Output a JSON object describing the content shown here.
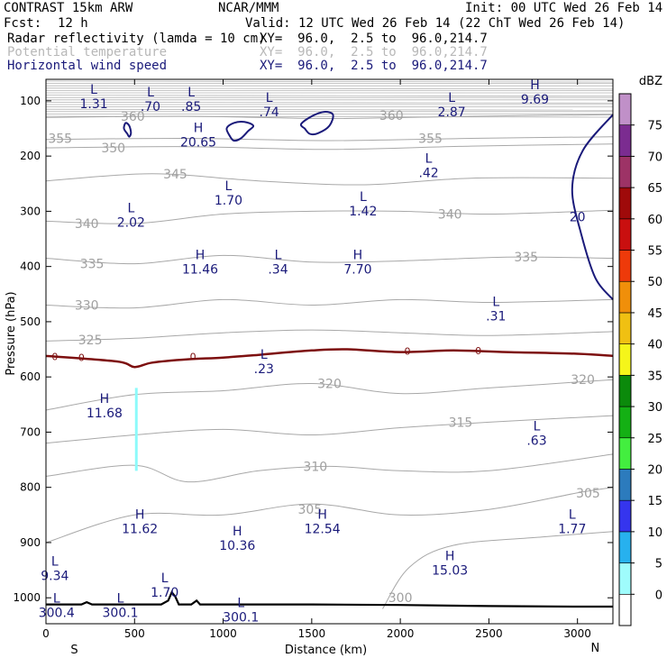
{
  "header": {
    "model": "CONTRAST 15km ARW",
    "org": "NCAR/MMM",
    "init": "Init: 00 UTC Wed 26 Feb 14",
    "fcst_label": "Fcst:",
    "fcst_value": "12 h",
    "valid": "Valid: 12 UTC Wed 26 Feb 14 (22 ChT Wed 26 Feb 14)",
    "fields": [
      {
        "name": "Radar reflectivity (lamda = 10 cm)",
        "xy": "XY=  96.0,  2.5 to  96.0,214.7",
        "color": "#000000"
      },
      {
        "name": "Potential temperature",
        "xy": "XY=  96.0,  2.5 to  96.0,214.7",
        "color": "#b8b8b8"
      },
      {
        "name": "Horizontal wind speed",
        "xy": "XY=  96.0,  2.5 to  96.0,214.7",
        "color": "#1a1a7a"
      }
    ]
  },
  "chart_data": {
    "type": "cross-section",
    "xlabel": "Distance (km)",
    "ylabel": "Pressure (hPa)",
    "xlim": [
      0,
      3200
    ],
    "ylim": [
      1050,
      50
    ],
    "x_ticks": [
      0,
      500,
      1000,
      1500,
      2000,
      2500,
      3000
    ],
    "y_ticks": [
      100,
      200,
      300,
      400,
      500,
      600,
      700,
      800,
      900,
      1000
    ],
    "x_end_labels": {
      "left": "S",
      "right": "N"
    },
    "theta_contours": [
      {
        "value": 360,
        "points": [
          [
            0,
            130
          ],
          [
            800,
            128
          ],
          [
            1600,
            132
          ],
          [
            2400,
            128
          ],
          [
            3200,
            125
          ]
        ]
      },
      {
        "value": 355,
        "points": [
          [
            0,
            170
          ],
          [
            800,
            168
          ],
          [
            1600,
            172
          ],
          [
            2400,
            168
          ],
          [
            3200,
            165
          ]
        ]
      },
      {
        "value": 350,
        "points": [
          [
            0,
            185
          ],
          [
            800,
            183
          ],
          [
            1600,
            188
          ],
          [
            2400,
            182
          ],
          [
            3200,
            178
          ]
        ]
      },
      {
        "value": 345,
        "points": [
          [
            0,
            245
          ],
          [
            600,
            232
          ],
          [
            1200,
            245
          ],
          [
            1800,
            252
          ],
          [
            2400,
            240
          ],
          [
            3200,
            240
          ]
        ]
      },
      {
        "value": 340,
        "points": [
          [
            0,
            318
          ],
          [
            500,
            322
          ],
          [
            1000,
            305
          ],
          [
            1500,
            300
          ],
          [
            2000,
            300
          ],
          [
            2500,
            305
          ],
          [
            3200,
            298
          ]
        ]
      },
      {
        "value": 335,
        "points": [
          [
            0,
            385
          ],
          [
            500,
            395
          ],
          [
            1000,
            380
          ],
          [
            1500,
            392
          ],
          [
            2000,
            390
          ],
          [
            2600,
            383
          ],
          [
            3200,
            385
          ]
        ]
      },
      {
        "value": 330,
        "points": [
          [
            0,
            470
          ],
          [
            500,
            475
          ],
          [
            1000,
            460
          ],
          [
            1500,
            470
          ],
          [
            2000,
            460
          ],
          [
            2500,
            465
          ],
          [
            3200,
            460
          ]
        ]
      },
      {
        "value": 325,
        "points": [
          [
            0,
            535
          ],
          [
            500,
            530
          ],
          [
            1000,
            520
          ],
          [
            1500,
            515
          ],
          [
            2000,
            520
          ],
          [
            2500,
            525
          ],
          [
            3200,
            518
          ]
        ]
      },
      {
        "value": 320,
        "points": [
          [
            0,
            660
          ],
          [
            500,
            632
          ],
          [
            1000,
            625
          ],
          [
            1500,
            612
          ],
          [
            2000,
            630
          ],
          [
            2500,
            620
          ],
          [
            3200,
            605
          ]
        ]
      },
      {
        "value": 315,
        "points": [
          [
            0,
            720
          ],
          [
            500,
            705
          ],
          [
            1000,
            695
          ],
          [
            1500,
            705
          ],
          [
            2000,
            692
          ],
          [
            2500,
            682
          ],
          [
            3200,
            670
          ]
        ]
      },
      {
        "value": 310,
        "points": [
          [
            0,
            780
          ],
          [
            500,
            760
          ],
          [
            800,
            790
          ],
          [
            1200,
            770
          ],
          [
            1600,
            762
          ],
          [
            2000,
            770
          ],
          [
            2500,
            770
          ],
          [
            3200,
            740
          ]
        ]
      },
      {
        "value": 305,
        "points": [
          [
            0,
            900
          ],
          [
            500,
            850
          ],
          [
            1000,
            850
          ],
          [
            1500,
            830
          ],
          [
            2000,
            850
          ],
          [
            2500,
            840
          ],
          [
            3000,
            810
          ],
          [
            3200,
            800
          ]
        ]
      },
      {
        "value": 300,
        "points": [
          [
            1900,
            1020
          ],
          [
            2050,
            945
          ],
          [
            2300,
            905
          ],
          [
            2800,
            890
          ],
          [
            3200,
            880
          ]
        ]
      }
    ],
    "theta_labels": [
      {
        "text": "360",
        "x": 490,
        "p": 128
      },
      {
        "text": "355",
        "x": 80,
        "p": 168
      },
      {
        "text": "350",
        "x": 380,
        "p": 185
      },
      {
        "text": "345",
        "x": 730,
        "p": 232
      },
      {
        "text": "340",
        "x": 230,
        "p": 322
      },
      {
        "text": "335",
        "x": 260,
        "p": 395
      },
      {
        "text": "330",
        "x": 230,
        "p": 470
      },
      {
        "text": "325",
        "x": 250,
        "p": 533
      },
      {
        "text": "320",
        "x": 1600,
        "p": 612
      },
      {
        "text": "315",
        "x": 2340,
        "p": 682
      },
      {
        "text": "310",
        "x": 1520,
        "p": 762
      },
      {
        "text": "305",
        "x": 1490,
        "p": 840
      },
      {
        "text": "300",
        "x": 2000,
        "p": 1000
      },
      {
        "text": "360",
        "x": 1950,
        "p": 126
      },
      {
        "text": "355",
        "x": 2170,
        "p": 168
      },
      {
        "text": "340",
        "x": 2280,
        "p": 305
      },
      {
        "text": "335",
        "x": 2710,
        "p": 383
      },
      {
        "text": "320",
        "x": 3030,
        "p": 605
      },
      {
        "text": "305",
        "x": 3060,
        "p": 810
      }
    ],
    "zero_contour": [
      [
        0,
        562
      ],
      [
        400,
        572
      ],
      [
        500,
        582
      ],
      [
        600,
        574
      ],
      [
        800,
        568
      ],
      [
        1000,
        565
      ],
      [
        1200,
        560
      ],
      [
        1500,
        552
      ],
      [
        1700,
        550
      ],
      [
        2000,
        555
      ],
      [
        2300,
        552
      ],
      [
        2600,
        555
      ],
      [
        3000,
        558
      ],
      [
        3200,
        562
      ]
    ],
    "zero_label": "0",
    "wind_contour_20": [
      [
        3200,
        125
      ],
      [
        3030,
        190
      ],
      [
        2970,
        260
      ],
      [
        3020,
        340
      ],
      [
        3100,
        420
      ],
      [
        3200,
        460
      ]
    ],
    "wind_label": "20",
    "wind_small_contours": [
      [
        [
          460,
          160
        ],
        [
          440,
          150
        ],
        [
          450,
          140
        ],
        [
          470,
          145
        ],
        [
          480,
          158
        ],
        [
          470,
          165
        ]
      ],
      [
        [
          1040,
          165
        ],
        [
          1020,
          150
        ],
        [
          1060,
          140
        ],
        [
          1120,
          138
        ],
        [
          1170,
          145
        ],
        [
          1140,
          155
        ],
        [
          1100,
          168
        ],
        [
          1060,
          172
        ]
      ],
      [
        [
          1460,
          150
        ],
        [
          1440,
          142
        ],
        [
          1500,
          128
        ],
        [
          1570,
          120
        ],
        [
          1620,
          125
        ],
        [
          1600,
          145
        ],
        [
          1540,
          158
        ],
        [
          1490,
          160
        ]
      ]
    ],
    "hl_labels": [
      {
        "mark": "L",
        "value": "1.31",
        "x": 270,
        "p": 90
      },
      {
        "mark": "L",
        "value": ".70",
        "x": 590,
        "p": 95
      },
      {
        "mark": "L",
        "value": ".85",
        "x": 820,
        "p": 95
      },
      {
        "mark": "L",
        "value": ".74",
        "x": 1260,
        "p": 105
      },
      {
        "mark": "L",
        "value": "2.87",
        "x": 2290,
        "p": 105
      },
      {
        "mark": "H",
        "value": "9.69",
        "x": 2760,
        "p": 82
      },
      {
        "mark": "H",
        "value": "20.65",
        "x": 860,
        "p": 160
      },
      {
        "mark": "L",
        "value": ".42",
        "x": 2160,
        "p": 215
      },
      {
        "mark": "L",
        "value": "1.70",
        "x": 1030,
        "p": 265
      },
      {
        "mark": "L",
        "value": "1.42",
        "x": 1790,
        "p": 285
      },
      {
        "mark": "L",
        "value": "2.02",
        "x": 480,
        "p": 305
      },
      {
        "mark": "H",
        "value": "11.46",
        "x": 870,
        "p": 390
      },
      {
        "mark": "L",
        "value": ".34",
        "x": 1310,
        "p": 390
      },
      {
        "mark": "H",
        "value": "7.70",
        "x": 1760,
        "p": 390
      },
      {
        "mark": "L",
        "value": ".31",
        "x": 2540,
        "p": 475
      },
      {
        "mark": "L",
        "value": ".23",
        "x": 1230,
        "p": 570
      },
      {
        "mark": "H",
        "value": "11.68",
        "x": 330,
        "p": 650
      },
      {
        "mark": "L",
        "value": ".63",
        "x": 2770,
        "p": 700
      },
      {
        "mark": "H",
        "value": "11.62",
        "x": 530,
        "p": 860
      },
      {
        "mark": "H",
        "value": "12.54",
        "x": 1560,
        "p": 860
      },
      {
        "mark": "L",
        "value": "1.77",
        "x": 2970,
        "p": 860
      },
      {
        "mark": "H",
        "value": "10.36",
        "x": 1080,
        "p": 890
      },
      {
        "mark": "H",
        "value": "15.03",
        "x": 2280,
        "p": 935
      },
      {
        "mark": "L",
        "value": "9.34",
        "x": 50,
        "p": 945
      },
      {
        "mark": "L",
        "value": "1.70",
        "x": 670,
        "p": 975
      },
      {
        "mark": "L",
        "value": "300.4",
        "x": 60,
        "p": 1012
      },
      {
        "mark": "L",
        "value": "300.1",
        "x": 420,
        "p": 1012
      },
      {
        "mark": "L",
        "value": "300.1",
        "x": 1100,
        "p": 1020
      }
    ],
    "reflectivity_strip": {
      "x": 510,
      "p_top": 620,
      "p_bottom": 770,
      "dbz": 5
    },
    "terrain": [
      [
        0,
        1012
      ],
      [
        200,
        1012
      ],
      [
        230,
        1008
      ],
      [
        260,
        1012
      ],
      [
        650,
        1012
      ],
      [
        690,
        1005
      ],
      [
        710,
        990
      ],
      [
        730,
        998
      ],
      [
        750,
        1012
      ],
      [
        820,
        1012
      ],
      [
        850,
        1005
      ],
      [
        870,
        1012
      ],
      [
        1500,
        1012
      ],
      [
        2000,
        1013
      ],
      [
        2500,
        1015
      ],
      [
        3000,
        1016
      ],
      [
        3200,
        1016
      ]
    ],
    "colorbar": {
      "title": "dBZ",
      "levels": [
        0,
        5,
        10,
        15,
        20,
        25,
        30,
        35,
        40,
        45,
        50,
        55,
        60,
        65,
        70,
        75
      ],
      "colors": [
        "#ffffff",
        "#9ffcfc",
        "#27b1ee",
        "#3535ee",
        "#2c7bbd",
        "#43ee3f",
        "#14b014",
        "#0b8a0b",
        "#f5f51a",
        "#f0c012",
        "#f08f0a",
        "#ee3a0a",
        "#c90f0f",
        "#9f0a0a",
        "#9d3366",
        "#7b2c90",
        "#c090c8"
      ]
    }
  },
  "colors": {
    "frame": "#000000",
    "theta": "#a8a8a8",
    "wind": "#1a1a7a",
    "zero": "#7d0f0f",
    "terrain": "#000000",
    "strip": "#8cfafa"
  }
}
